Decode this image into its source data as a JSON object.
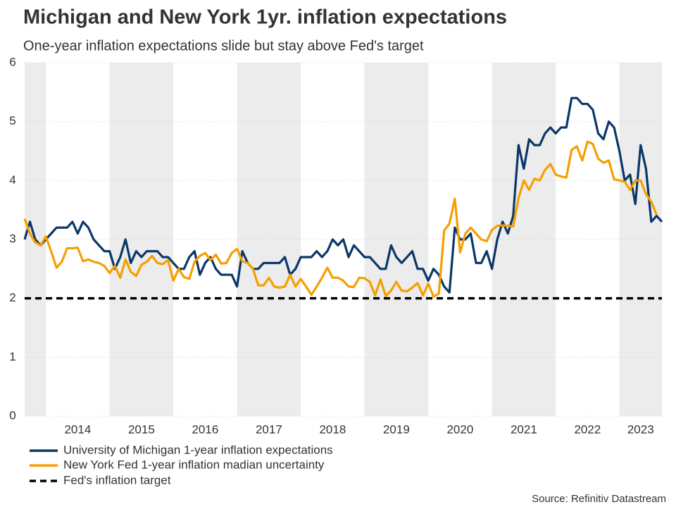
{
  "chart_data": {
    "type": "line",
    "title": "Michigan and New York 1yr. inflation expectations",
    "subtitle": "One-year inflation expectations slide but stay above Fed's target",
    "source": "Source: Refinitiv Datastream",
    "x": [
      2013.667,
      2013.75,
      2013.833,
      2013.917,
      2014,
      2014.083,
      2014.167,
      2014.25,
      2014.333,
      2014.417,
      2014.5,
      2014.583,
      2014.667,
      2014.75,
      2014.833,
      2014.917,
      2015,
      2015.083,
      2015.167,
      2015.25,
      2015.333,
      2015.417,
      2015.5,
      2015.583,
      2015.667,
      2015.75,
      2015.833,
      2015.917,
      2016,
      2016.083,
      2016.167,
      2016.25,
      2016.333,
      2016.417,
      2016.5,
      2016.583,
      2016.667,
      2016.75,
      2016.833,
      2016.917,
      2017,
      2017.083,
      2017.167,
      2017.25,
      2017.333,
      2017.417,
      2017.5,
      2017.583,
      2017.667,
      2017.75,
      2017.833,
      2017.917,
      2018,
      2018.083,
      2018.167,
      2018.25,
      2018.333,
      2018.417,
      2018.5,
      2018.583,
      2018.667,
      2018.75,
      2018.833,
      2018.917,
      2019,
      2019.083,
      2019.167,
      2019.25,
      2019.333,
      2019.417,
      2019.5,
      2019.583,
      2019.667,
      2019.75,
      2019.833,
      2019.917,
      2020,
      2020.083,
      2020.167,
      2020.25,
      2020.333,
      2020.417,
      2020.5,
      2020.583,
      2020.667,
      2020.75,
      2020.833,
      2020.917,
      2021,
      2021.083,
      2021.167,
      2021.25,
      2021.333,
      2021.417,
      2021.5,
      2021.583,
      2021.667,
      2021.75,
      2021.833,
      2021.917,
      2022,
      2022.083,
      2022.167,
      2022.25,
      2022.333,
      2022.417,
      2022.5,
      2022.583,
      2022.667,
      2022.75,
      2022.833,
      2022.917,
      2023,
      2023.083,
      2023.167,
      2023.25,
      2023.333,
      2023.417,
      2023.5,
      2023.583,
      2023.667
    ],
    "series": [
      {
        "name": "University of Michigan 1-year inflation expectations",
        "color": "#0b3768",
        "values": [
          3.0,
          3.3,
          3.0,
          2.9,
          3.0,
          3.1,
          3.2,
          3.2,
          3.2,
          3.3,
          3.1,
          3.3,
          3.2,
          3.0,
          2.9,
          2.8,
          2.8,
          2.5,
          2.7,
          3.0,
          2.6,
          2.8,
          2.7,
          2.8,
          2.8,
          2.8,
          2.7,
          2.7,
          2.6,
          2.5,
          2.5,
          2.7,
          2.8,
          2.4,
          2.6,
          2.7,
          2.5,
          2.4,
          2.4,
          2.4,
          2.2,
          2.8,
          2.6,
          2.5,
          2.5,
          2.6,
          2.6,
          2.6,
          2.6,
          2.7,
          2.4,
          2.5,
          2.7,
          2.7,
          2.7,
          2.8,
          2.7,
          2.8,
          3.0,
          2.9,
          3.0,
          2.7,
          2.9,
          2.8,
          2.7,
          2.7,
          2.6,
          2.5,
          2.5,
          2.9,
          2.7,
          2.6,
          2.7,
          2.8,
          2.5,
          2.5,
          2.3,
          2.5,
          2.4,
          2.2,
          2.1,
          3.2,
          3.0,
          3.0,
          3.1,
          2.6,
          2.6,
          2.8,
          2.5,
          3.0,
          3.3,
          3.1,
          3.4,
          4.6,
          4.2,
          4.7,
          4.6,
          4.6,
          4.8,
          4.9,
          4.8,
          4.9,
          4.9,
          5.4,
          5.4,
          5.3,
          5.3,
          5.2,
          4.8,
          4.7,
          5.0,
          4.9,
          4.5,
          4.0,
          4.1,
          3.6,
          4.6,
          4.2,
          3.3,
          3.4,
          3.3
        ]
      },
      {
        "name": "New York Fed 1-year inflation madian uncertainty",
        "color": "#f59f00",
        "values": [
          3.35,
          3.1,
          2.95,
          2.9,
          3.05,
          2.8,
          2.52,
          2.62,
          2.85,
          2.85,
          2.86,
          2.63,
          2.66,
          2.62,
          2.6,
          2.55,
          2.43,
          2.55,
          2.35,
          2.66,
          2.45,
          2.38,
          2.57,
          2.62,
          2.72,
          2.6,
          2.58,
          2.65,
          2.3,
          2.5,
          2.36,
          2.33,
          2.62,
          2.72,
          2.77,
          2.65,
          2.74,
          2.59,
          2.6,
          2.77,
          2.84,
          2.63,
          2.6,
          2.5,
          2.22,
          2.22,
          2.35,
          2.2,
          2.18,
          2.2,
          2.4,
          2.2,
          2.33,
          2.2,
          2.06,
          2.2,
          2.35,
          2.52,
          2.35,
          2.35,
          2.3,
          2.2,
          2.19,
          2.35,
          2.34,
          2.28,
          2.05,
          2.32,
          2.04,
          2.13,
          2.28,
          2.13,
          2.12,
          2.18,
          2.26,
          2.05,
          2.25,
          2.03,
          2.08,
          3.15,
          3.27,
          3.69,
          2.78,
          3.1,
          3.2,
          3.1,
          3.0,
          2.97,
          3.16,
          3.23,
          3.24,
          3.23,
          3.22,
          3.7,
          4.0,
          3.84,
          4.03,
          4.0,
          4.18,
          4.28,
          4.1,
          4.07,
          4.05,
          4.52,
          4.58,
          4.34,
          4.66,
          4.62,
          4.37,
          4.3,
          4.34,
          4.02,
          4.0,
          3.98,
          3.84,
          4.0,
          4.0,
          3.77,
          3.64,
          3.42,
          null
        ]
      }
    ],
    "reference_line": {
      "name": "Fed's inflation target",
      "value": 2,
      "color": "#000000",
      "dashed": true
    },
    "xlim": [
      2013.667,
      2023.667
    ],
    "xticks": [
      {
        "value": 2014.5,
        "label": "2014"
      },
      {
        "value": 2015.5,
        "label": "2015"
      },
      {
        "value": 2016.5,
        "label": "2016"
      },
      {
        "value": 2017.5,
        "label": "2017"
      },
      {
        "value": 2018.5,
        "label": "2018"
      },
      {
        "value": 2019.5,
        "label": "2019"
      },
      {
        "value": 2020.5,
        "label": "2020"
      },
      {
        "value": 2021.5,
        "label": "2021"
      },
      {
        "value": 2022.5,
        "label": "2022"
      },
      {
        "value": 2023.333,
        "label": "2023"
      }
    ],
    "ylim": [
      0,
      6
    ],
    "yticks": [
      0,
      1,
      2,
      3,
      4,
      5,
      6
    ],
    "grid": true
  }
}
